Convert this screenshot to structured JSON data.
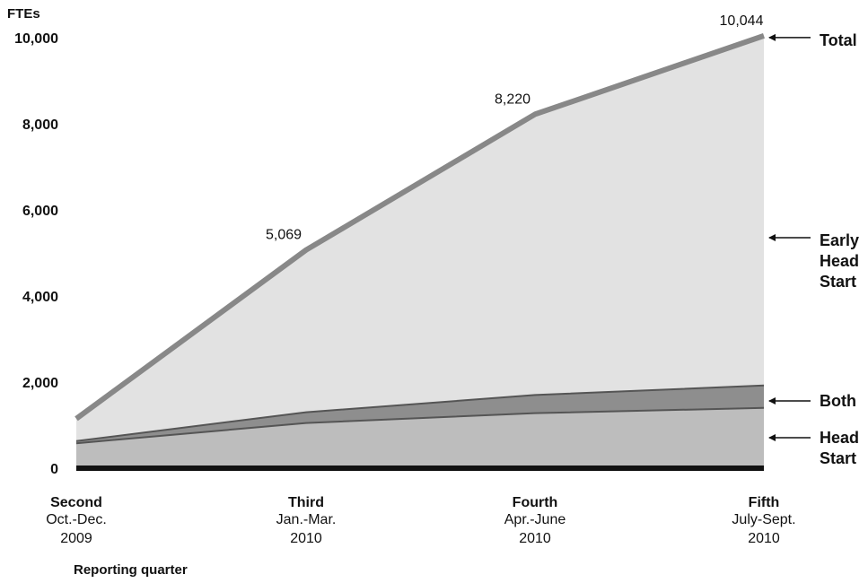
{
  "chart_data": {
    "type": "area",
    "ylabel": "FTEs",
    "xlabel": "Reporting quarter",
    "ylim": [
      0,
      10000
    ],
    "yticks": [
      "0",
      "2,000",
      "4,000",
      "6,000",
      "8,000",
      "10,000"
    ],
    "ytick_values": [
      0,
      2000,
      4000,
      6000,
      8000,
      10000
    ],
    "categories": [
      {
        "name": "Second",
        "period": "Oct.-Dec.",
        "year": "2009"
      },
      {
        "name": "Third",
        "period": "Jan.-Mar.",
        "year": "2010"
      },
      {
        "name": "Fourth",
        "period": "Apr.-June",
        "year": "2010"
      },
      {
        "name": "Fifth",
        "period": "July-Sept.",
        "year": "2010"
      }
    ],
    "series": [
      {
        "name": "Head Start",
        "values": [
          580,
          1050,
          1280,
          1400
        ],
        "color": "#bdbdbd"
      },
      {
        "name": "Both",
        "values": [
          50,
          250,
          420,
          520
        ],
        "color": "#8e8e8e"
      },
      {
        "name": "Early Head Start",
        "values": [
          520,
          3769,
          6520,
          8124
        ],
        "color": "#e2e2e2"
      }
    ],
    "total": {
      "name": "Total",
      "values": [
        1150,
        5069,
        8220,
        10044
      ],
      "color": "#888888"
    },
    "data_labels": [
      "5,069",
      "8,220",
      "10,044"
    ],
    "grid": false
  }
}
